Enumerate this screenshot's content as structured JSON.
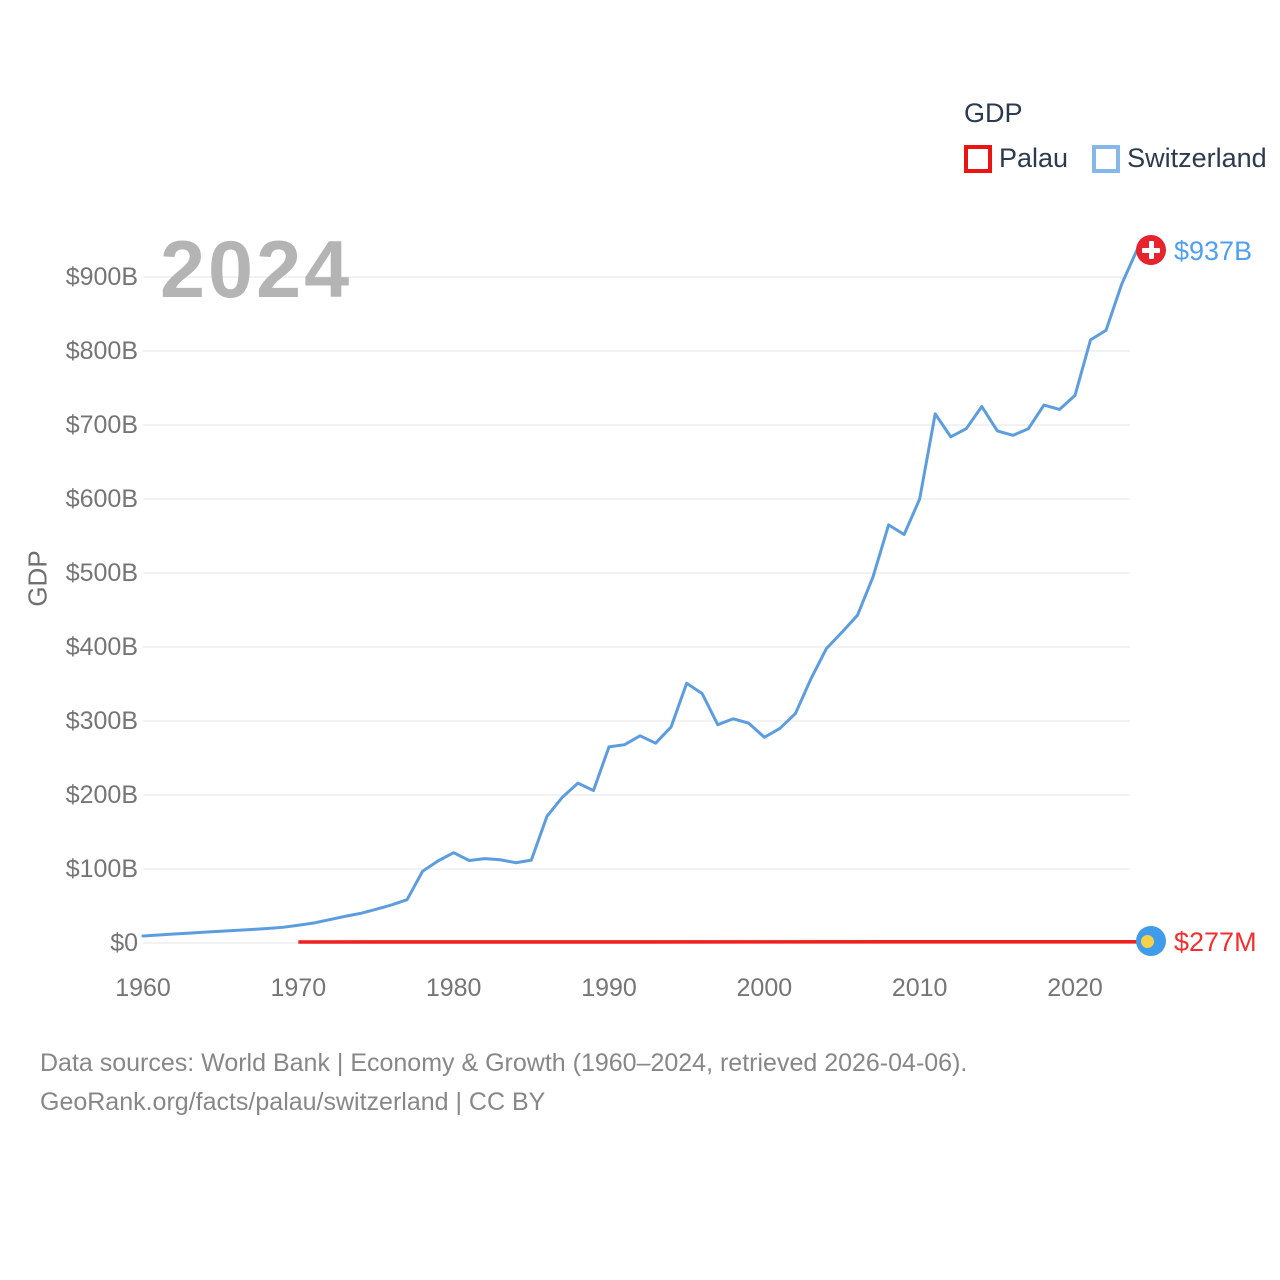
{
  "page": {
    "background": "#ffffff"
  },
  "legend": {
    "title": "GDP",
    "items": [
      {
        "label": "Palau",
        "swatch_color": "#ec1313"
      },
      {
        "label": "Switzerland",
        "swatch_color": "#85b7eb"
      }
    ]
  },
  "watermark": "2024",
  "axis": {
    "y_title": "GDP",
    "y_ticks": [
      "$0",
      "$100B",
      "$200B",
      "$300B",
      "$400B",
      "$500B",
      "$600B",
      "$700B",
      "$800B",
      "$900B"
    ],
    "x_ticks": [
      "1960",
      "1970",
      "1980",
      "1990",
      "2000",
      "2010",
      "2020"
    ]
  },
  "end_markers": {
    "switzerland": {
      "label": "$937B",
      "label_color": "#4fa0f2",
      "flag": "swiss-flag"
    },
    "palau": {
      "label": "$277M",
      "label_color": "#f52d2d",
      "flag": "palau-flag"
    }
  },
  "footer": {
    "line1": "Data sources: World Bank | Economy & Growth (1960–2024, retrieved 2026-04-06).",
    "line2": "GeoRank.org/facts/palau/switzerland | CC BY"
  },
  "chart_data": {
    "type": "line",
    "ylabel": "GDP",
    "watermark": "2024",
    "grid": "horizontal",
    "legend_position": "top-right",
    "x_axis": {
      "min": 1960,
      "max": 2024,
      "tick_years": [
        1960,
        1970,
        1980,
        1990,
        2000,
        2010,
        2020
      ]
    },
    "y_axis": {
      "min_usd_b": 0,
      "max_usd_b": 950,
      "tick_interval_usd_b": 100,
      "tick_format": "$<n>B"
    },
    "series": [
      {
        "name": "Switzerland",
        "color": "#5c9de0",
        "end_label": "$937B",
        "start_year": 1960,
        "gdp_usd_b": [
          9.5,
          10.8,
          12.1,
          13.3,
          14.7,
          15.9,
          17.0,
          18.3,
          19.6,
          21.2,
          24.0,
          27.0,
          31.5,
          36.0,
          40.0,
          45.5,
          51.5,
          58.5,
          97.0,
          111.0,
          122.0,
          111.5,
          114.0,
          112.5,
          108.5,
          112.0,
          171.0,
          197.0,
          216.0,
          206.0,
          265.0,
          268.0,
          280.0,
          270.0,
          292.0,
          351.0,
          337.0,
          295.0,
          303.0,
          297.0,
          278.0,
          290.0,
          310.0,
          357.0,
          398.0,
          420.0,
          443.0,
          495.0,
          565.0,
          552.0,
          600.0,
          715.0,
          684.0,
          695.0,
          725.0,
          692.0,
          686.0,
          695.0,
          727.0,
          721.0,
          740.0,
          815.0,
          828.0,
          890.0,
          937.0
        ]
      },
      {
        "name": "Palau",
        "color": "#f02020",
        "end_label": "$277M",
        "start_year": 1970,
        "years": [
          1970,
          2024
        ],
        "gdp_usd_b": [
          0.0,
          0.277
        ]
      }
    ]
  }
}
